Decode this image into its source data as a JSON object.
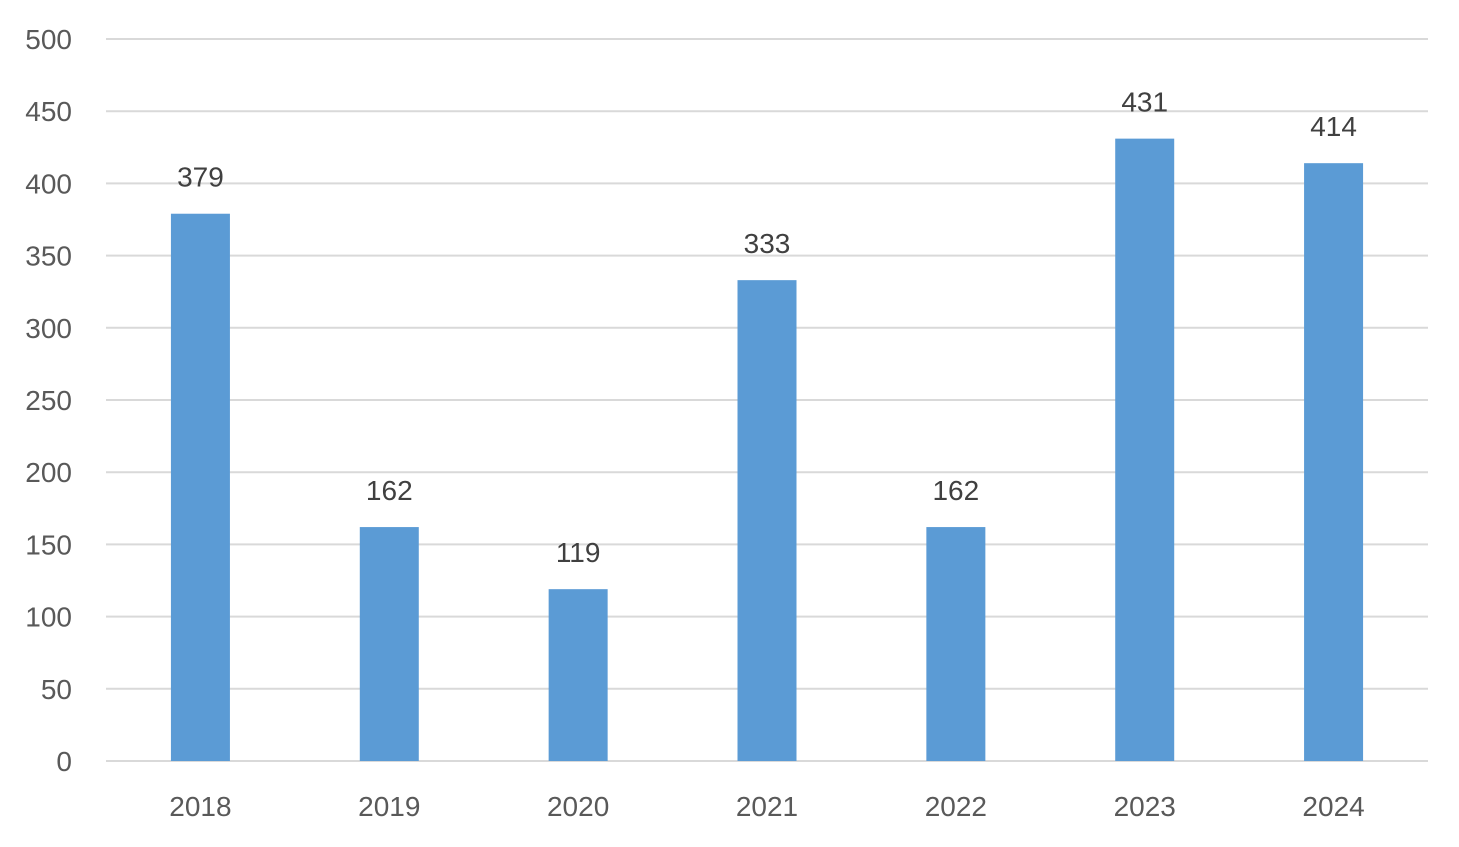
{
  "chart_data": {
    "type": "bar",
    "title": "",
    "xlabel": "",
    "ylabel": "",
    "categories": [
      "2018",
      "2019",
      "2020",
      "2021",
      "2022",
      "2023",
      "2024"
    ],
    "values": [
      379,
      162,
      119,
      333,
      162,
      431,
      414
    ],
    "data_labels": [
      "379",
      "162",
      "119",
      "333",
      "162",
      "431",
      "414"
    ],
    "ylim": [
      0,
      500
    ],
    "yticks": [
      "0",
      "50",
      "100",
      "150",
      "200",
      "250",
      "300",
      "350",
      "400",
      "450",
      "500"
    ],
    "grid": true,
    "legend": "none",
    "bar_color": "#5b9bd5"
  }
}
